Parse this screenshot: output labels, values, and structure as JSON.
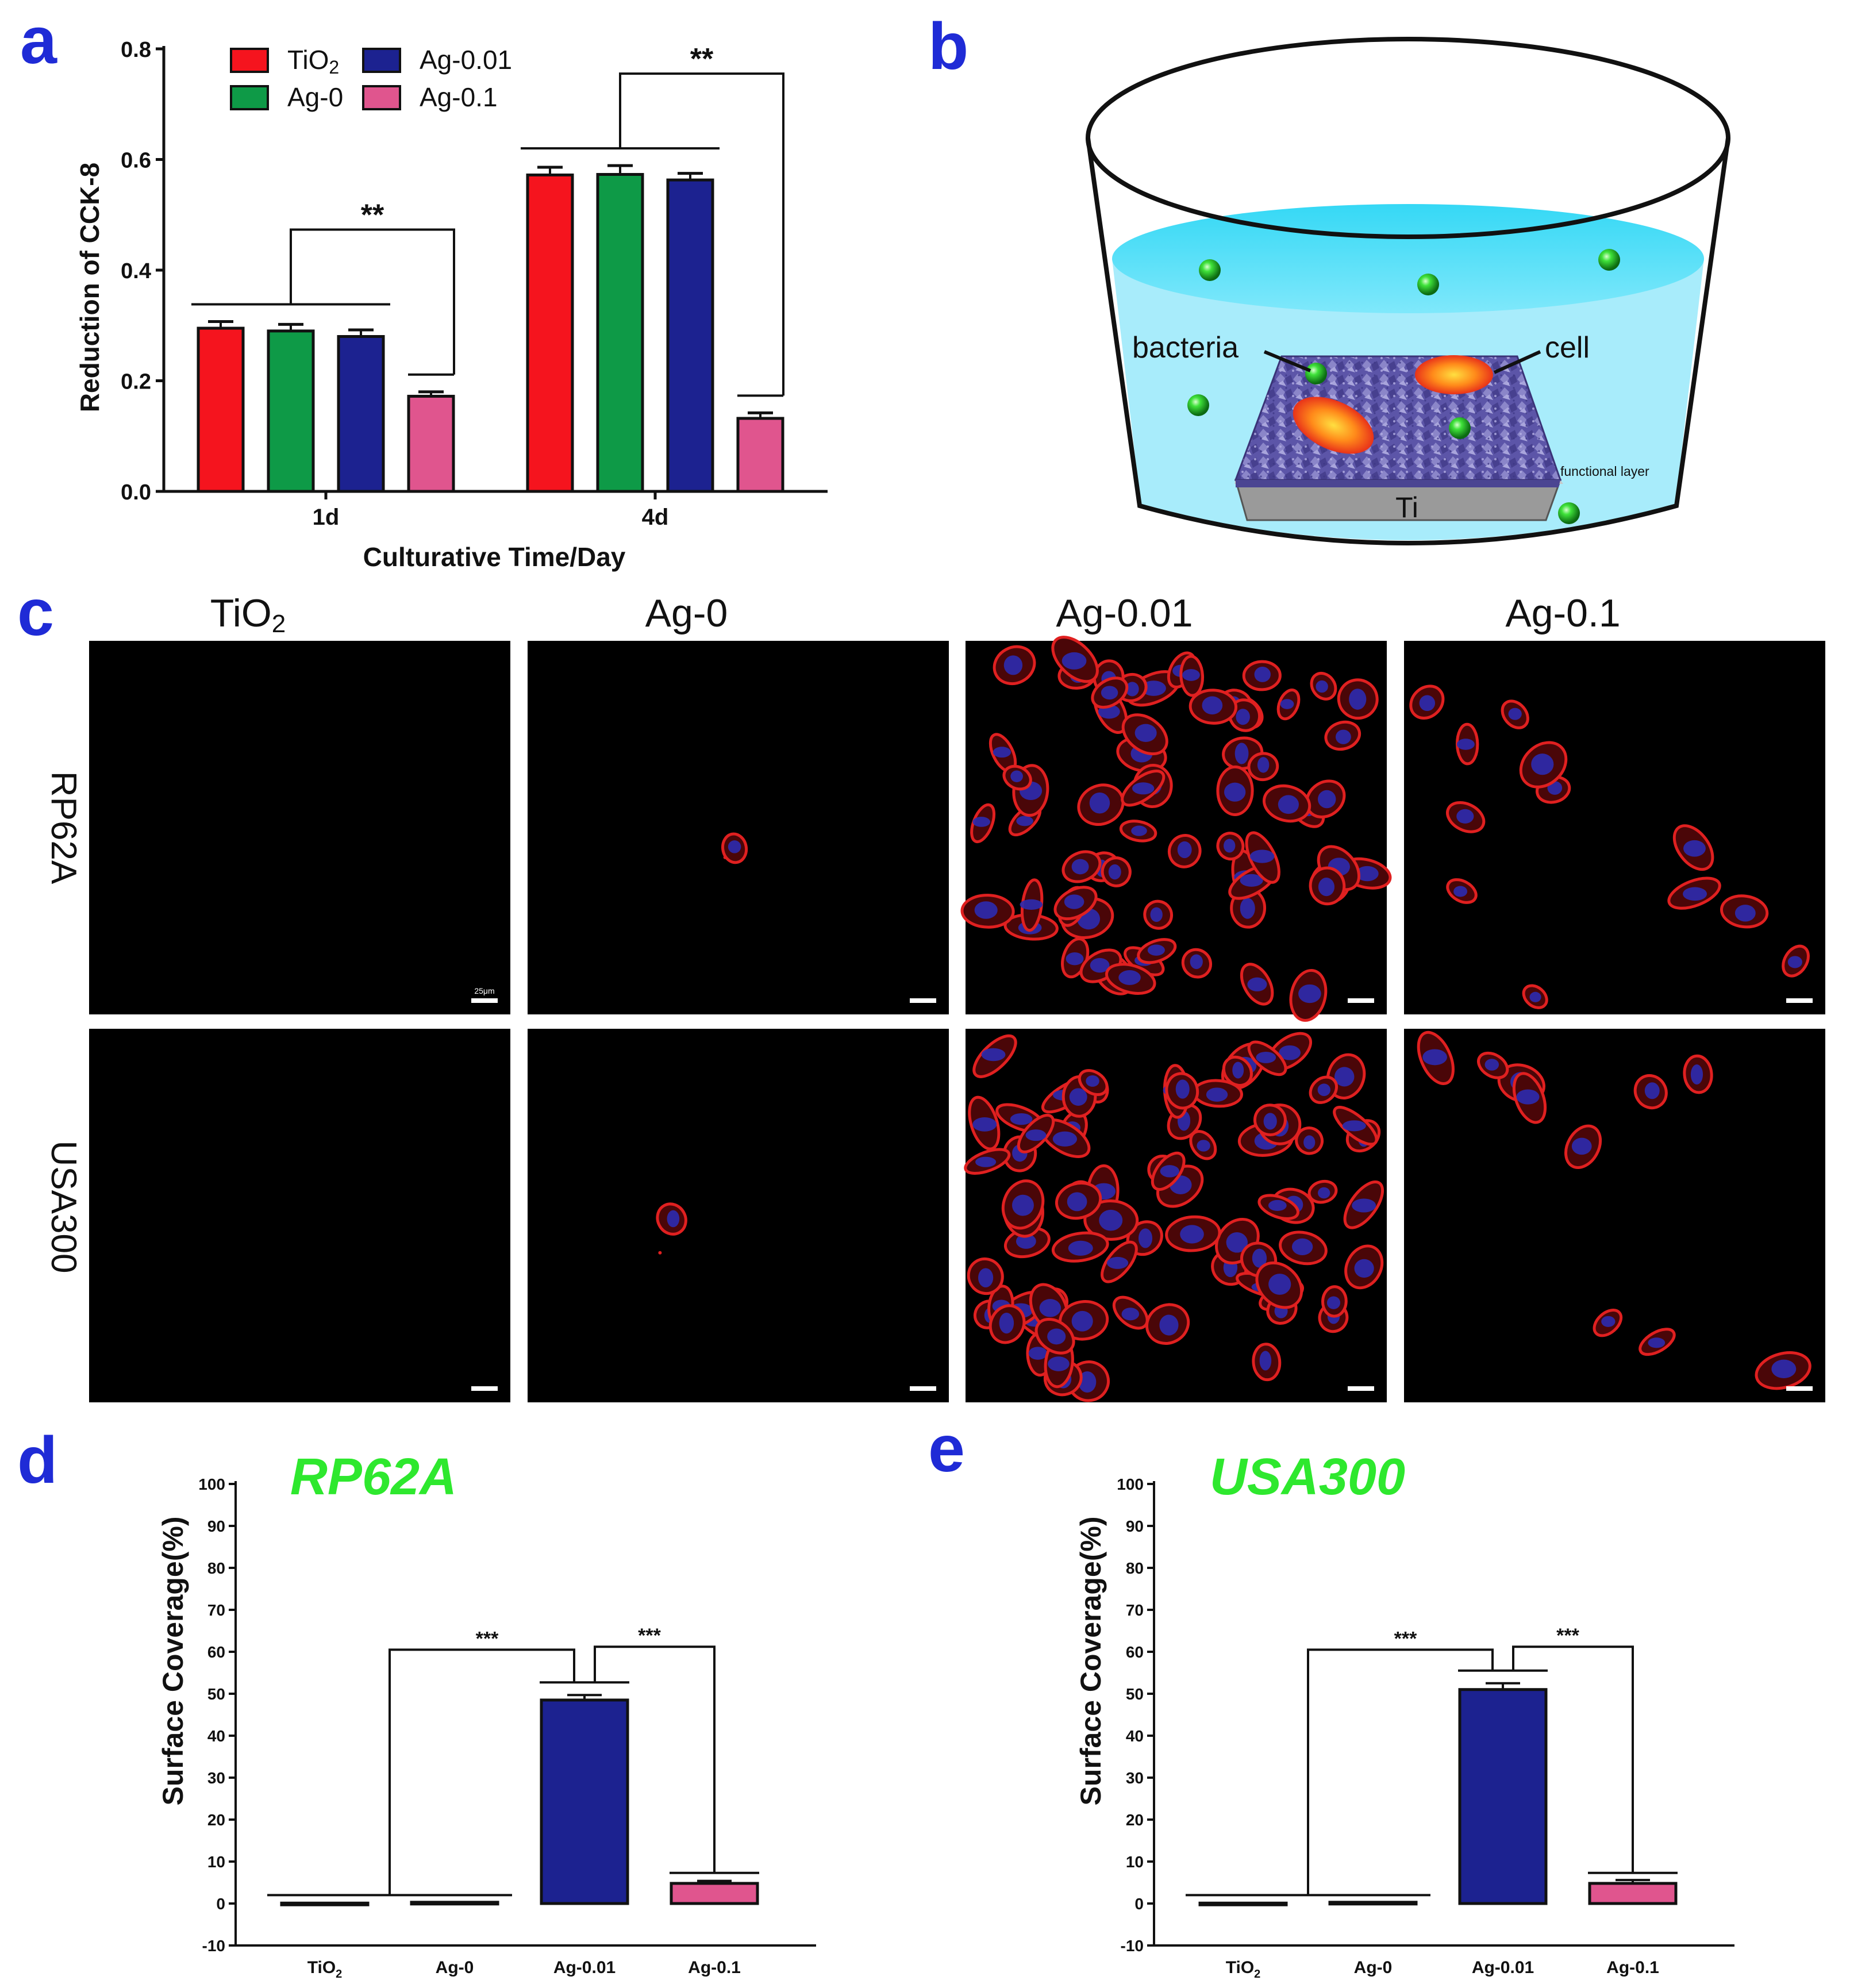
{
  "panel_labels": {
    "a": "a",
    "b": "b",
    "c": "c",
    "d": "d",
    "e": "e"
  },
  "colors": {
    "tio2": "#f5141e",
    "ag0": "#0e9a47",
    "ag001": "#1c2290",
    "ag01": "#e0558e",
    "panel_label": "#1f2bd6",
    "green_title": "#2ee82e",
    "cell_red": "#e02020",
    "nucleus": "#2c2bb0"
  },
  "groups": [
    "TiO2",
    "Ag-0",
    "Ag-0.01",
    "Ag-0.1"
  ],
  "legend_a": {
    "tio2_base": "TiO",
    "tio2_sub": "2",
    "ag0": "Ag-0",
    "ag001": "Ag-0.01",
    "ag01": "Ag-0.1"
  },
  "chart_data": [
    {
      "id": "a",
      "type": "bar",
      "categories": [
        "1d",
        "4d"
      ],
      "xlabel": "Culturative Time/Day",
      "ylabel": "Reduction of CCK-8",
      "ylim": [
        0,
        0.8
      ],
      "yticks": [
        "0.0",
        "0.2",
        "0.4",
        "0.6",
        "0.8"
      ],
      "series": [
        {
          "name": "TiO2",
          "values": [
            0.295,
            0.572
          ],
          "errors": [
            0.012,
            0.014
          ]
        },
        {
          "name": "Ag-0",
          "values": [
            0.29,
            0.573
          ],
          "errors": [
            0.012,
            0.016
          ]
        },
        {
          "name": "Ag-0.01",
          "values": [
            0.28,
            0.563
          ],
          "errors": [
            0.012,
            0.012
          ]
        },
        {
          "name": "Ag-0.1",
          "values": [
            0.172,
            0.132
          ],
          "errors": [
            0.008,
            0.01
          ]
        }
      ],
      "significance": [
        "**",
        "**"
      ]
    },
    {
      "id": "d",
      "type": "bar",
      "title": "RP62A",
      "categories": [
        "TiO2",
        "Ag-0",
        "Ag-0.01",
        "Ag-0.1"
      ],
      "values": [
        0.1,
        0.3,
        48.5,
        4.8
      ],
      "errors": [
        0,
        0,
        1.2,
        0.6
      ],
      "ylabel": "Surface Coverage(%)",
      "ylim": [
        -10,
        100
      ],
      "yticks": [
        "-10",
        "0",
        "10",
        "20",
        "30",
        "40",
        "50",
        "60",
        "70",
        "80",
        "90",
        "100"
      ],
      "significance": [
        "***",
        "***"
      ]
    },
    {
      "id": "e",
      "type": "bar",
      "title": "USA300",
      "categories": [
        "TiO2",
        "Ag-0",
        "Ag-0.01",
        "Ag-0.1"
      ],
      "values": [
        0.1,
        0.3,
        51,
        4.8
      ],
      "errors": [
        0,
        0,
        1.5,
        0.8
      ],
      "ylabel": "Surface Coverage(%)",
      "ylim": [
        -10,
        100
      ],
      "yticks": [
        "-10",
        "0",
        "10",
        "20",
        "30",
        "40",
        "50",
        "60",
        "70",
        "80",
        "90",
        "100"
      ],
      "significance": [
        "***",
        "***"
      ]
    }
  ],
  "panel_b": {
    "bacteria": "bacteria",
    "cell": "cell",
    "functional_layer": "functional layer",
    "ti": "Ti"
  },
  "panel_c": {
    "col_headers": [
      {
        "base": "TiO",
        "sub": "2"
      },
      {
        "base": "Ag-0",
        "sub": ""
      },
      {
        "base": "Ag-0.01",
        "sub": ""
      },
      {
        "base": "Ag-0.1",
        "sub": ""
      }
    ],
    "row_headers": [
      "RP62A",
      "USA300"
    ],
    "scale_text": "25μm",
    "cell_density": [
      [
        0,
        1,
        65,
        12
      ],
      [
        0,
        1,
        75,
        10
      ]
    ]
  }
}
